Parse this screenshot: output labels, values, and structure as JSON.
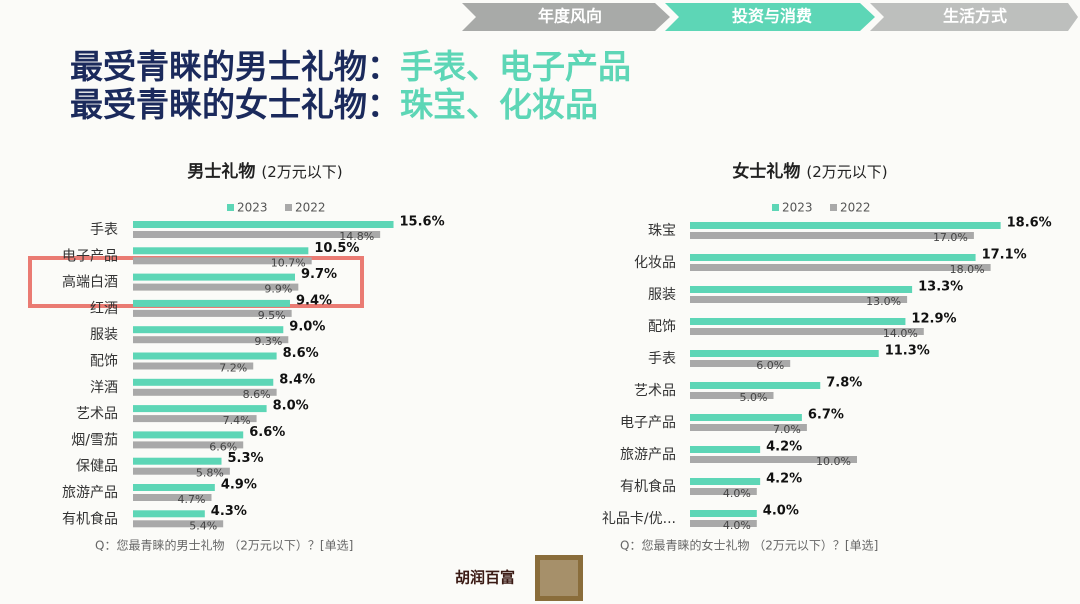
{
  "nav": [
    "年度风向",
    "投资与消费",
    "生活方式"
  ],
  "title": {
    "line1": {
      "lead": "最受青睐的男士礼物：",
      "highlight": "手表、电子产品"
    },
    "line2": {
      "lead": "最受青睐的女士礼物：",
      "highlight": "珠宝、化妆品"
    }
  },
  "chart_data": [
    {
      "type": "bar",
      "title": "男士礼物",
      "subtitle": "(2万元以下)",
      "categories": [
        "手表",
        "电子产品",
        "高端白酒",
        "红酒",
        "服装",
        "配饰",
        "洋酒",
        "艺术品",
        "烟/雪茄",
        "保健品",
        "旅游产品",
        "有机食品"
      ],
      "series": [
        {
          "name": "2023",
          "color": "#5dd6b6",
          "values": [
            15.6,
            10.5,
            9.7,
            9.4,
            9.0,
            8.6,
            8.4,
            8.0,
            6.6,
            5.3,
            4.9,
            4.3
          ],
          "value_labels": [
            "15.6%",
            "10.5%",
            "9.7%",
            "9.4%",
            "9.0%",
            "8.6%",
            "8.4%",
            "8.0%",
            "6.6%",
            "5.3%",
            "4.9%",
            "4.3%"
          ]
        },
        {
          "name": "2022",
          "color": "#a9a9a9",
          "values": [
            14.8,
            10.7,
            9.9,
            9.5,
            9.3,
            7.2,
            8.6,
            7.4,
            6.6,
            5.8,
            4.7,
            5.4
          ],
          "value_labels": [
            "14.8%",
            "10.7%",
            "9.9%",
            "9.5%",
            "9.3%",
            "7.2%",
            "8.6%",
            "7.4%",
            "6.6%",
            "5.8%",
            "4.7%",
            "5.4%"
          ]
        }
      ],
      "note": "Q：您最青睐的男士礼物 （2万元以下）？[单选]"
    },
    {
      "type": "bar",
      "title": "女士礼物",
      "subtitle": "(2万元以下)",
      "categories": [
        "珠宝",
        "化妆品",
        "服装",
        "配饰",
        "手表",
        "艺术品",
        "电子产品",
        "旅游产品",
        "有机食品",
        "礼品卡/优..."
      ],
      "series": [
        {
          "name": "2023",
          "color": "#5dd6b6",
          "values": [
            18.6,
            17.1,
            13.3,
            12.9,
            11.3,
            7.8,
            6.7,
            4.2,
            4.2,
            4.0
          ],
          "value_labels": [
            "18.6%",
            "17.1%",
            "13.3%",
            "12.9%",
            "11.3%",
            "7.8%",
            "6.7%",
            "4.2%",
            "4.2%",
            "4.0%"
          ]
        },
        {
          "name": "2022",
          "color": "#a9a9a9",
          "values": [
            17.0,
            18.0,
            13.0,
            14.0,
            6.0,
            5.0,
            7.0,
            10.0,
            4.0,
            4.0
          ],
          "value_labels": [
            "17.0%",
            "18.0%",
            "13.0%",
            "14.0%",
            "6.0%",
            "5.0%",
            "7.0%",
            "10.0%",
            "4.0%",
            "4.0%"
          ]
        }
      ],
      "note": "Q：您最青睐的女士礼物 （2万元以下）？[单选]"
    }
  ],
  "logo": "胡润百富"
}
